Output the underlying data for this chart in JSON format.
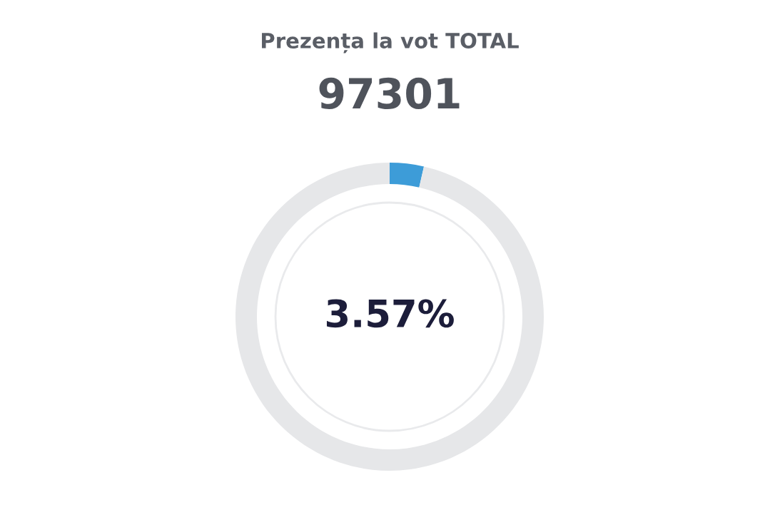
{
  "chart_data": {
    "type": "donut",
    "title": "Prezența la vot TOTAL",
    "subtitle": "97301",
    "categories": [
      null,
      null
    ],
    "values": [
      3.57,
      96.43
    ],
    "colors": [
      "#3d9cd8",
      "#e6e7e9"
    ],
    "annotations": [
      "3.57%"
    ]
  }
}
